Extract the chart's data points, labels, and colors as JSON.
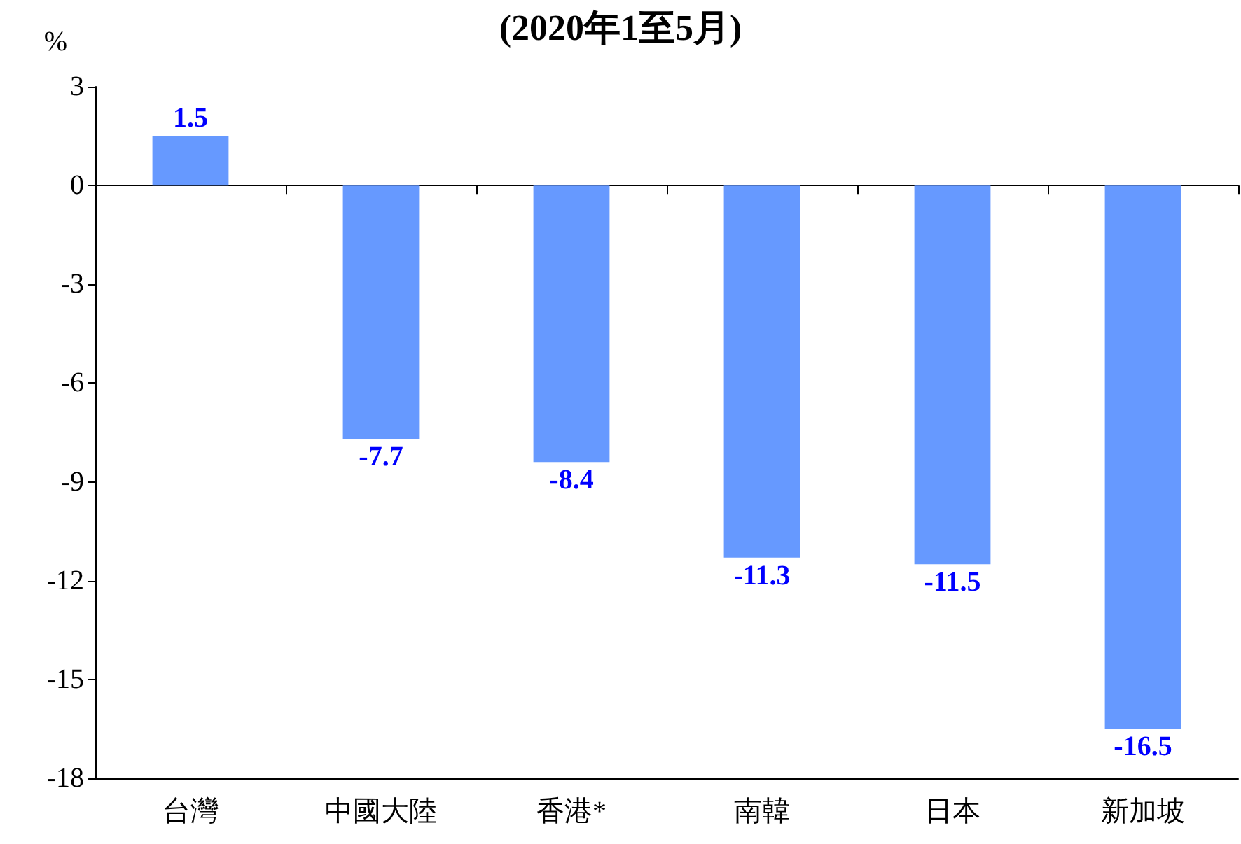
{
  "chart_data": {
    "type": "bar",
    "title": "(2020年1至5月)",
    "ylabel": "%",
    "categories": [
      "台灣",
      "中國大陸",
      "香港*",
      "南韓",
      "日本",
      "新加坡"
    ],
    "values": [
      1.5,
      -7.7,
      -8.4,
      -11.3,
      -11.5,
      -16.5
    ],
    "color": "#6699ff",
    "ylim": [
      -18,
      3
    ],
    "yticks": [
      -18,
      -15,
      -12,
      -9,
      -6,
      -3,
      0,
      3
    ],
    "data_labels": true
  }
}
